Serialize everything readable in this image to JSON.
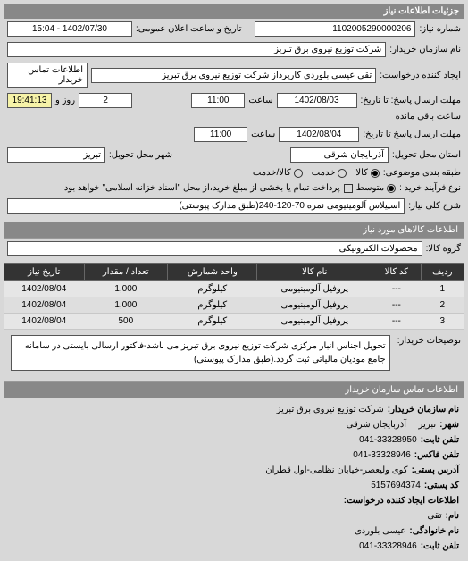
{
  "header": {
    "title": "جزئیات اطلاعات نیاز"
  },
  "fields": {
    "request_no_label": "شماره نیاز:",
    "request_no": "1102005290000206",
    "public_datetime_label": "تاریخ و ساعت اعلان عمومی:",
    "public_datetime": "1402/07/30 - 15:04",
    "buyer_org_label": "نام سازمان خریدار:",
    "buyer_org": "شرکت توزیع نیروی برق تبریز",
    "buyer_contact_label": "اطلاعات تماس خریدار",
    "creator_label": "ایجاد کننده درخواست:",
    "creator": "تقی عیسی بلوردی کارپرداز شرکت توزیع نیروی برق تبریز",
    "deadline_send_label": "مهلت ارسال پاسخ: تا تاریخ:",
    "deadline_send_date": "1402/08/03",
    "deadline_send_time_label": "ساعت",
    "deadline_send_time": "11:00",
    "remaining_label": "روز و",
    "remaining_days": "2",
    "remaining_time": "19:41:13",
    "remaining_suffix": "ساعت باقی مانده",
    "deadline_answer_label": "مهلت ارسال پاسخ تا تاریخ:",
    "deadline_answer_date": "1402/08/04",
    "deadline_answer_time_label": "ساعت",
    "deadline_answer_time": "11:00",
    "province_label": "استان محل تحویل:",
    "province": "آذربایجان شرقی",
    "city_label": "شهر محل تحویل:",
    "city": "تبریز",
    "package_label": "طبقه بندی موضوعی:",
    "package_opts": {
      "all": "کالا",
      "mid": "خدمت",
      "part": "کالا/خدمت"
    },
    "buy_type_label": "نوع فرآیند خرید :",
    "buy_type_opts": {
      "low": "متوسط"
    },
    "pay_note": "پرداخت تمام یا بخشی از مبلغ خرید،از محل \"اسناد خزانه اسلامی\" خواهد بود.",
    "need_title_label": "شرح کلی نیاز:",
    "need_title": "اسپیلاس آلومینیومی نمره 70-120-240(طبق مدارک پیوستی)"
  },
  "items_section": {
    "title": "اطلاعات کالاهای مورد نیاز"
  },
  "group_label": "گروه کالا:",
  "group_value": "محصولات الکترونیکی",
  "table": {
    "headers": {
      "idx": "ردیف",
      "code": "کد کالا",
      "name": "نام کالا",
      "unit": "واحد شمارش",
      "qty": "تعداد / مقدار",
      "date": "تاریخ نیاز"
    },
    "rows": [
      {
        "idx": "1",
        "code": "---",
        "name": "پروفیل آلومینیومی",
        "unit": "کیلوگرم",
        "qty": "1,000",
        "date": "1402/08/04"
      },
      {
        "idx": "2",
        "code": "---",
        "name": "پروفیل آلومینیومی",
        "unit": "کیلوگرم",
        "qty": "1,000",
        "date": "1402/08/04"
      },
      {
        "idx": "3",
        "code": "---",
        "name": "پروفیل آلومینیومی",
        "unit": "کیلوگرم",
        "qty": "500",
        "date": "1402/08/04"
      }
    ]
  },
  "buyer_desc_label": "توضیحات خریدار:",
  "buyer_desc": "تحویل اجناس انبار مرکزی شرکت توزیع نیروی برق تبریز می باشد-فاکتور ارسالی بایستی در سامانه جامع مودیان مالیاتی ثبت گردد.(طبق مدارک پیوستی)",
  "contact_section": {
    "title": "اطلاعات تماس سازمان خریدار"
  },
  "contact": {
    "org_label": "نام سازمان خریدار:",
    "org": "شرکت توزیع نیروی برق تبریز",
    "city_label": "شهر:",
    "city": "تبریز",
    "province_label": "آذربایجان شرقی",
    "phone_label": "تلفن ثابت:",
    "phone": "041-33328950",
    "fax_label": "تلفن فاکس:",
    "fax": "041-33328946",
    "address_label": "آدرس پستی:",
    "address": "کوی ولیعصر-خیابان نظامی-اول قطران",
    "postal_label": "کد پستی:",
    "postal": "5157694374",
    "creator_section": "اطلاعات ایجاد کننده درخواست:",
    "name_label": "نام:",
    "name": "تقی",
    "family_label": "نام خانوادگی:",
    "family": "عیسی بلوردی",
    "tel_label": "تلفن ثابت:",
    "tel": "041-33328946"
  }
}
